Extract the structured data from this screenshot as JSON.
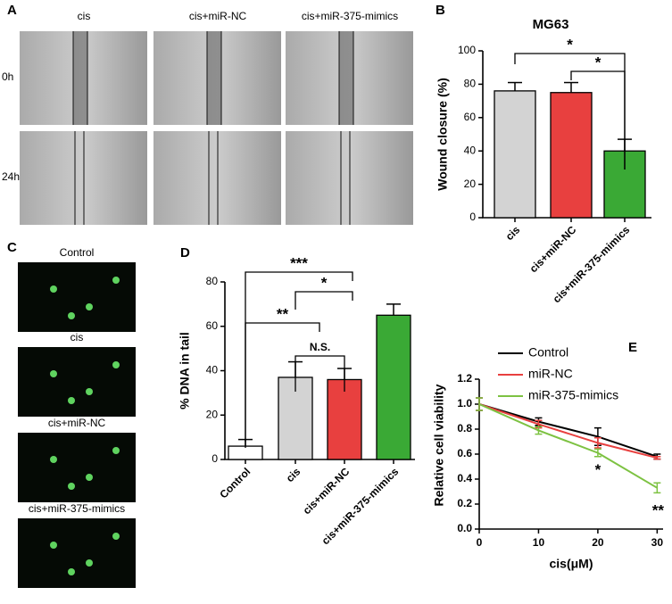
{
  "panels": {
    "A": {
      "label": "A",
      "columns": [
        "cis",
        "cis+miR-NC",
        "cis+miR-375-mimics"
      ],
      "rows": [
        "0h",
        "24h"
      ]
    },
    "B": {
      "label": "B"
    },
    "C": {
      "label": "C",
      "images": [
        "Control",
        "cis",
        "cis+miR-NC",
        "cis+miR-375-mimics"
      ]
    },
    "D": {
      "label": "D"
    },
    "E": {
      "label": "E"
    }
  },
  "chart_data": [
    {
      "type": "bar",
      "title": "MG63",
      "y_label": "Wound closure (%)",
      "categories": [
        "cis",
        "cis+miR-NC",
        "cis+miR-375-mimics"
      ],
      "values": [
        76,
        75,
        40
      ],
      "errors": [
        5,
        6,
        7
      ],
      "colors": [
        "#d3d3d3",
        "#e8403f",
        "#3aa935"
      ],
      "ylim": [
        0,
        100
      ],
      "yticks": [
        0,
        20,
        40,
        60,
        80,
        100
      ],
      "annotations": [
        "*",
        "*"
      ]
    },
    {
      "type": "bar",
      "y_label": "% DNA in tail",
      "categories": [
        "Control",
        "cis",
        "cis+miR-NC",
        "cis+miR-375-mimics"
      ],
      "values": [
        6,
        37,
        36,
        65
      ],
      "errors": [
        3,
        7,
        5,
        5
      ],
      "colors": [
        "#ffffff",
        "#d3d3d3",
        "#e8403f",
        "#3aa935"
      ],
      "ylim": [
        0,
        80
      ],
      "yticks": [
        0,
        20,
        40,
        60,
        80
      ],
      "annotations": [
        "***",
        "*",
        "**",
        "N.S."
      ]
    },
    {
      "type": "line",
      "x_label": "cis(μM)",
      "y_label": "Relative cell viability",
      "x": [
        0,
        10,
        20,
        30
      ],
      "series": [
        {
          "name": "Control",
          "color": "#000000",
          "values": [
            1.0,
            0.86,
            0.74,
            0.58
          ],
          "errors": [
            0.05,
            0.03,
            0.07,
            0.02
          ]
        },
        {
          "name": "miR-NC",
          "color": "#e8403f",
          "values": [
            1.0,
            0.84,
            0.69,
            0.57
          ],
          "errors": [
            0.05,
            0.03,
            0.04,
            0.01
          ]
        },
        {
          "name": "miR-375-mimics",
          "color": "#7dc242",
          "values": [
            1.0,
            0.79,
            0.61,
            0.33
          ],
          "errors": [
            0.05,
            0.03,
            0.03,
            0.04
          ]
        }
      ],
      "xlim": [
        0,
        31
      ],
      "xticks": [
        0,
        10,
        20,
        30
      ],
      "ylim": [
        0,
        1.2
      ],
      "yticks": [
        {
          "value": 0,
          "label": "0.0"
        },
        0.2,
        0.4,
        0.6,
        0.8,
        {
          "value": 1,
          "label": "1.0"
        },
        1.2
      ],
      "legend": "top-left",
      "annotations": [
        "*",
        "**"
      ]
    }
  ]
}
